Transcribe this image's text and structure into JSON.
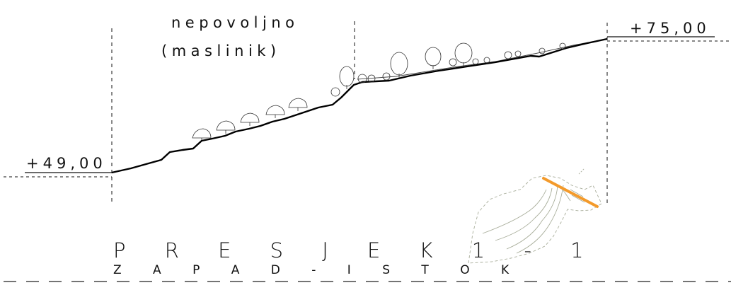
{
  "section": {
    "title": "P R E S J E K 1 - 1",
    "subtitle": "Z A P A D - I S T O K"
  },
  "zone_label": {
    "line1": "nepovoljno",
    "line2": "(maslinik)"
  },
  "elevations": {
    "left": "+49,00",
    "right": "+75,00"
  },
  "colors": {
    "ink": "#111111",
    "section_marker": "#f39a2b",
    "site_plan": "#a8ad9a"
  }
}
